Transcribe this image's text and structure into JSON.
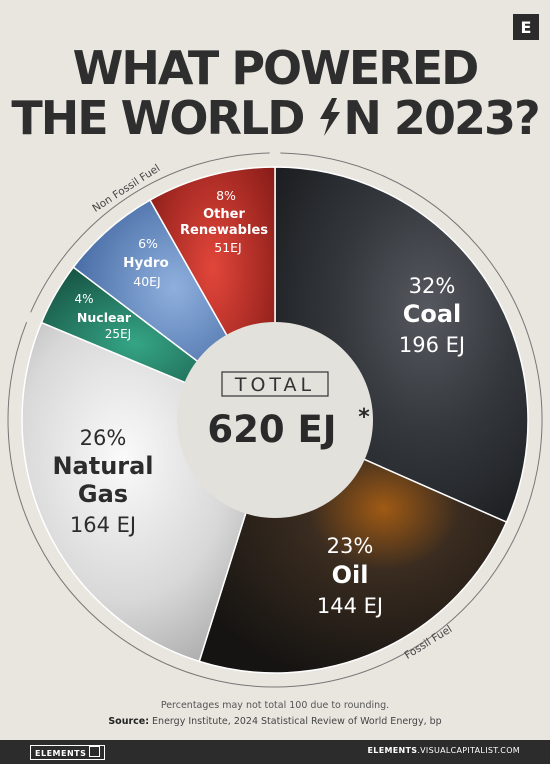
{
  "header": {
    "logo_letter": "E",
    "title_line1": "WHAT POWERED",
    "title_line2_pre": "THE WORLD ",
    "title_line2_post": "N 2023?"
  },
  "chart_data": {
    "type": "pie",
    "categories": [
      "Coal",
      "Oil",
      "Natural Gas",
      "Nuclear",
      "Hydro",
      "Other Renewables"
    ],
    "series": [
      {
        "values": [
          196,
          144,
          164,
          25,
          40,
          51
        ]
      }
    ],
    "unit": "EJ",
    "slices": [
      {
        "key": "coal",
        "label": "Coal",
        "pct": "32%",
        "value_label": "196 EJ",
        "value": 196,
        "color": "#2f3338"
      },
      {
        "key": "oil",
        "label": "Oil",
        "pct": "23%",
        "value_label": "144 EJ",
        "value": 144,
        "color": "#26221f"
      },
      {
        "key": "gas",
        "label_line1": "Natural",
        "label_line2": "Gas",
        "pct": "26%",
        "value_label": "164 EJ",
        "value": 164,
        "color": "#cfcfcf"
      },
      {
        "key": "nuclear",
        "label": "Nuclear",
        "pct": "4%",
        "value_label": "25EJ",
        "value": 25,
        "color": "#1f6a55"
      },
      {
        "key": "hydro",
        "label": "Hydro",
        "pct": "6%",
        "value_label": "40EJ",
        "value": 40,
        "color": "#4c78b4"
      },
      {
        "key": "other",
        "label_line1": "Other",
        "label_line2": "Renewables",
        "pct": "8%",
        "value_label": "51EJ",
        "value": 51,
        "color": "#b32520"
      }
    ],
    "center_label": "TOTAL",
    "center_value": "620 EJ",
    "center_mark": "*",
    "group_labels": {
      "non_fossil": "Non Fossil Fuel",
      "fossil": "Fossil Fuel"
    }
  },
  "notes": {
    "rounding": "Percentages may not total 100 due to rounding.",
    "source_label": "Source:",
    "source_text": " Energy Institute, 2024 Statistical Review of World Energy, bp"
  },
  "footer": {
    "brand": "ELEMENTS",
    "site_bold": "ELEMENTS",
    "site_rest": ".VISUALCAPITALIST.COM"
  }
}
